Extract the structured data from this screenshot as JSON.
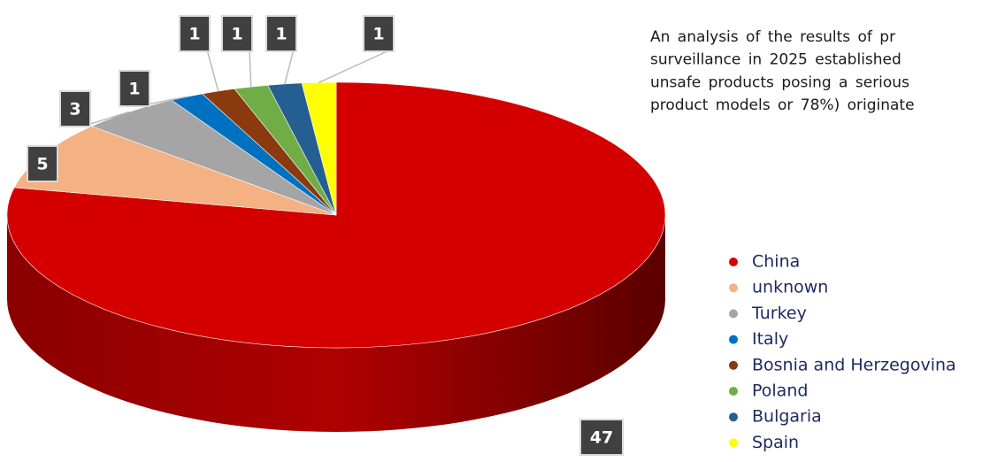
{
  "chart_data": {
    "type": "pie",
    "categories": [
      "China",
      "unknown",
      "Turkey",
      "Italy",
      "Bosnia and Herzegovina",
      "Poland",
      "Bulgaria",
      "Spain"
    ],
    "values": [
      47,
      5,
      3,
      1,
      1,
      1,
      1,
      1
    ],
    "colors": [
      "#d40000",
      "#f4b183",
      "#a5a5a5",
      "#0070c0",
      "#8b3a0f",
      "#70ad47",
      "#255e91",
      "#ffff00"
    ],
    "description_lines": [
      "An analysis of the results of pr",
      "surveillance in 2025 established",
      "unsafe products posing a serious",
      "product models or 78%) originate"
    ]
  }
}
